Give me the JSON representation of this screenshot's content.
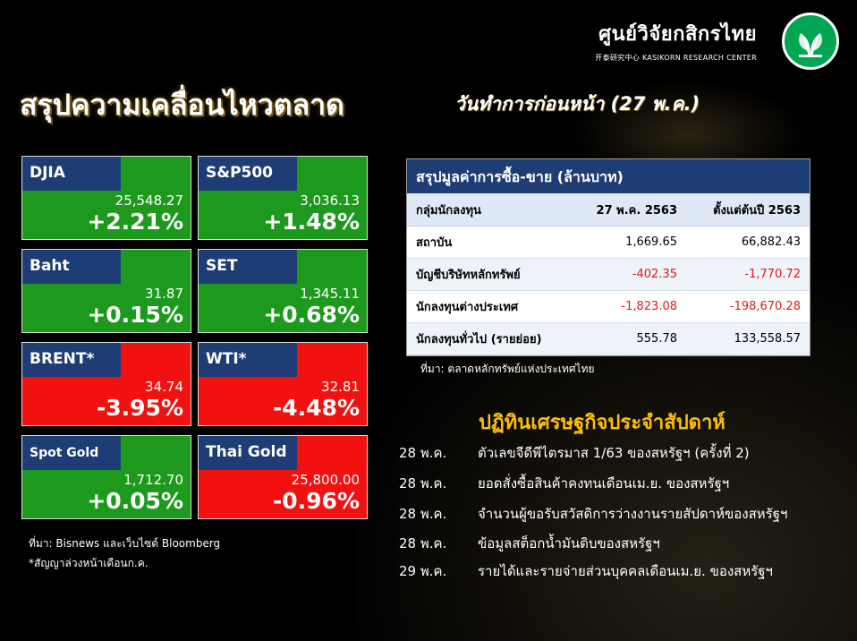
{
  "logo": {
    "name": "ศูนย์วิจัยกสิกรไทย",
    "sub": "开泰研究中心 KASIKORN RESEARCH CENTER",
    "mark_color": "#00a651"
  },
  "title": "สรุปความเคลื่อนไหวตลาด",
  "subtitle": "วันทำการก่อนหน้า (27 พ.ค.)",
  "colors": {
    "up": "#1d9a1d",
    "down": "#f21111",
    "label_bar": "#1f3d75",
    "events_title": "#ffc000",
    "negative": "#e01a1a"
  },
  "tiles": [
    {
      "name": "DJIA",
      "value": "25,548.27",
      "change": "+2.21%",
      "direction": "up"
    },
    {
      "name": "S&P500",
      "value": "3,036.13",
      "change": "+1.48%",
      "direction": "up"
    },
    {
      "name": "Baht",
      "value": "31.87",
      "change": "+0.15%",
      "direction": "up"
    },
    {
      "name": "SET",
      "value": "1,345.11",
      "change": "+0.68%",
      "direction": "up"
    },
    {
      "name": "BRENT*",
      "value": "34.74",
      "change": "-3.95%",
      "direction": "down"
    },
    {
      "name": "WTI*",
      "value": "32.81",
      "change": "-4.48%",
      "direction": "down"
    },
    {
      "name": "Spot Gold",
      "value": "1,712.70",
      "change": "+0.05%",
      "direction": "up"
    },
    {
      "name": "Thai Gold",
      "value": "25,800.00",
      "change": "-0.96%",
      "direction": "down"
    }
  ],
  "tiles_source": "ที่มา: Bisnews และเว็บไซต์ Bloomberg",
  "tiles_note": "*สัญญาล่วงหน้าเดือนก.ค.",
  "table": {
    "title": "สรุปมูลค่าการซื้อ-ขาย (ล้านบาท)",
    "headers": [
      "กลุ่มนักลงทุน",
      "27 พ.ค. 2563",
      "ตั้งแต่ต้นปี 2563"
    ],
    "rows": [
      [
        "สถาบัน",
        "1,669.65",
        "66,882.43"
      ],
      [
        "บัญชีบริษัทหลักทรัพย์",
        "-402.35",
        "-1,770.72"
      ],
      [
        "นักลงทุนต่างประเทศ",
        "-1,823.08",
        "-198,670.28"
      ],
      [
        "นักลงทุนทั่วไป (รายย่อย)",
        "555.78",
        "133,558.57"
      ]
    ],
    "source": "ที่มา: ตลาดหลักทรัพย์แห่งประเทศไทย"
  },
  "events": {
    "title": "ปฏิทินเศรษฐกิจประจำสัปดาห์",
    "items": [
      {
        "date": "28 พ.ค.",
        "text": "ตัวเลขจีดีพีไตรมาส 1/63 ของสหรัฐฯ (ครั้งที่ 2)"
      },
      {
        "date": "28 พ.ค.",
        "text": "ยอดสั่งซื้อสินค้าคงทนเดือนเม.ย. ของสหรัฐฯ"
      },
      {
        "date": "28 พ.ค.",
        "text": "จำนวนผู้ขอรับสวัสดิการว่างงานรายสัปดาห์ของสหรัฐฯ"
      },
      {
        "date": "28 พ.ค.",
        "text": "ข้อมูลสต็อกน้ำมันดิบของสหรัฐฯ"
      },
      {
        "date": "29 พ.ค.",
        "text": "รายได้และรายจ่ายส่วนบุคคลเดือนเม.ย. ของสหรัฐฯ"
      }
    ]
  }
}
